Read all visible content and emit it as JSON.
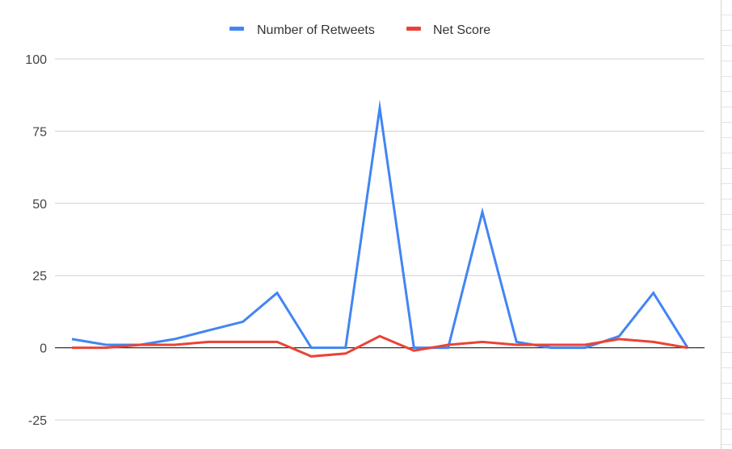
{
  "chart_data": {
    "type": "line",
    "title": "",
    "xlabel": "",
    "ylabel": "",
    "legend_position": "top",
    "grid": true,
    "ylim": [
      -25,
      100
    ],
    "yticks": [
      -25,
      0,
      25,
      50,
      75,
      100
    ],
    "x": [
      1,
      2,
      3,
      4,
      5,
      6,
      7,
      8,
      9,
      10,
      11,
      12,
      13,
      14,
      15,
      16,
      17,
      18,
      19
    ],
    "series": [
      {
        "name": "Number of Retweets",
        "color": "#4285f4",
        "values": [
          3,
          1,
          1,
          3,
          6,
          9,
          19,
          0,
          0,
          83,
          0,
          0,
          47,
          2,
          0,
          0,
          4,
          19,
          0
        ]
      },
      {
        "name": "Net Score",
        "color": "#ea4335",
        "values": [
          0,
          0,
          1,
          1,
          2,
          2,
          2,
          -3,
          -2,
          4,
          -1,
          1,
          2,
          1,
          1,
          1,
          3,
          2,
          0
        ]
      }
    ]
  }
}
